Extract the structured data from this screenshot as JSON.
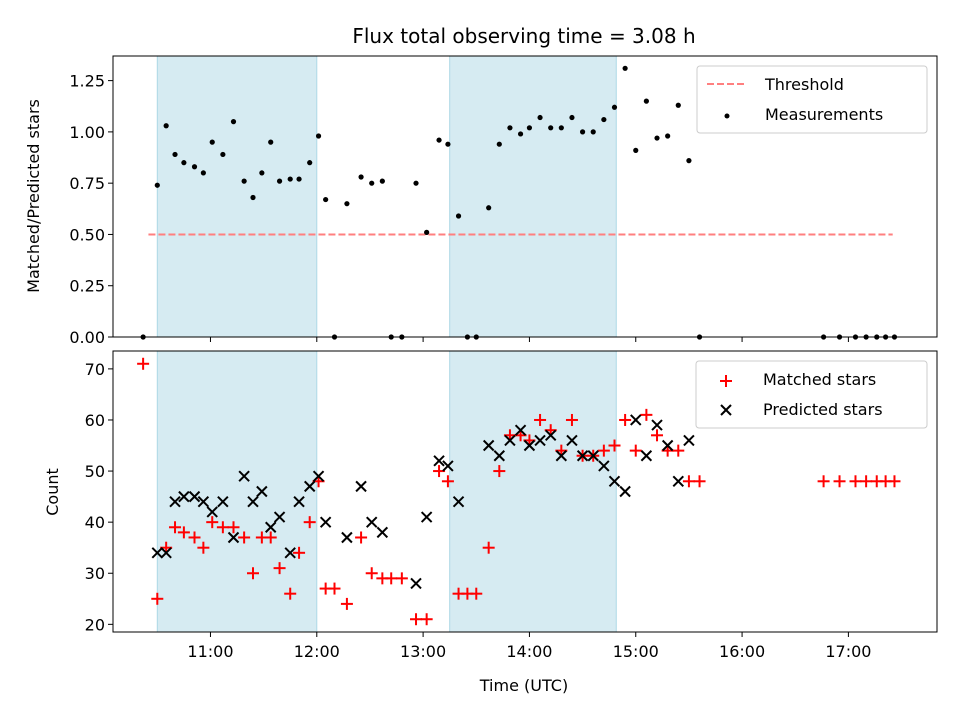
{
  "chart_data": [
    {
      "type": "scatter",
      "title": "Flux total observing time = 3.08 h",
      "xlabel": "",
      "ylabel": "Matched/Predicted stars",
      "xlim": [
        "10:05",
        "17:50"
      ],
      "ylim": [
        0,
        1.37
      ],
      "yticks": [
        0.0,
        0.25,
        0.5,
        0.75,
        1.0,
        1.25
      ],
      "ytick_labels": [
        "0.00",
        "0.25",
        "0.50",
        "0.75",
        "1.00",
        "1.25"
      ],
      "shaded_intervals": [
        [
          "10:30",
          "12:00"
        ],
        [
          "13:15",
          "14:49"
        ]
      ],
      "threshold": {
        "name": "Threshold",
        "y": 0.5,
        "x_range": [
          "10:25",
          "17:25"
        ],
        "color": "#ff7f7f"
      },
      "series": [
        {
          "name": "Measurements",
          "marker": "dot",
          "color": "#000000",
          "points": [
            [
              "10:22",
              0.0
            ],
            [
              "10:30",
              0.74
            ],
            [
              "10:35",
              1.03
            ],
            [
              "10:40",
              0.89
            ],
            [
              "10:45",
              0.85
            ],
            [
              "10:51",
              0.83
            ],
            [
              "10:56",
              0.8
            ],
            [
              "11:01",
              0.95
            ],
            [
              "11:07",
              0.89
            ],
            [
              "11:13",
              1.05
            ],
            [
              "11:19",
              0.76
            ],
            [
              "11:24",
              0.68
            ],
            [
              "11:29",
              0.8
            ],
            [
              "11:34",
              0.95
            ],
            [
              "11:39",
              0.76
            ],
            [
              "11:45",
              0.77
            ],
            [
              "11:50",
              0.77
            ],
            [
              "11:56",
              0.85
            ],
            [
              "12:01",
              0.98
            ],
            [
              "12:05",
              0.67
            ],
            [
              "12:10",
              0.0
            ],
            [
              "12:17",
              0.65
            ],
            [
              "12:25",
              0.78
            ],
            [
              "12:31",
              0.75
            ],
            [
              "12:37",
              0.76
            ],
            [
              "12:42",
              0.0
            ],
            [
              "12:48",
              0.0
            ],
            [
              "12:56",
              0.75
            ],
            [
              "13:02",
              0.51
            ],
            [
              "13:09",
              0.96
            ],
            [
              "13:14",
              0.94
            ],
            [
              "13:20",
              0.59
            ],
            [
              "13:25",
              0.0
            ],
            [
              "13:30",
              0.0
            ],
            [
              "13:37",
              0.63
            ],
            [
              "13:43",
              0.94
            ],
            [
              "13:49",
              1.02
            ],
            [
              "13:55",
              0.99
            ],
            [
              "14:00",
              1.02
            ],
            [
              "14:06",
              1.07
            ],
            [
              "14:12",
              1.02
            ],
            [
              "14:18",
              1.02
            ],
            [
              "14:24",
              1.07
            ],
            [
              "14:30",
              1.0
            ],
            [
              "14:36",
              1.0
            ],
            [
              "14:42",
              1.06
            ],
            [
              "14:48",
              1.12
            ],
            [
              "14:54",
              1.31
            ],
            [
              "15:00",
              0.91
            ],
            [
              "15:06",
              1.15
            ],
            [
              "15:12",
              0.97
            ],
            [
              "15:18",
              0.98
            ],
            [
              "15:24",
              1.13
            ],
            [
              "15:30",
              0.86
            ],
            [
              "15:36",
              0.0
            ],
            [
              "16:46",
              0.0
            ],
            [
              "16:55",
              0.0
            ],
            [
              "17:04",
              0.0
            ],
            [
              "17:10",
              0.0
            ],
            [
              "17:16",
              0.0
            ],
            [
              "17:21",
              0.0
            ],
            [
              "17:26",
              0.0
            ]
          ]
        }
      ]
    },
    {
      "type": "scatter",
      "title": "",
      "xlabel": "Time (UTC)",
      "ylabel": "Count",
      "xlim": [
        "10:05",
        "17:50"
      ],
      "ylim": [
        18.5,
        73.5
      ],
      "yticks": [
        20,
        30,
        40,
        50,
        60,
        70
      ],
      "ytick_labels": [
        "20",
        "30",
        "40",
        "50",
        "60",
        "70"
      ],
      "xticks": [
        "11:00",
        "12:00",
        "13:00",
        "14:00",
        "15:00",
        "16:00",
        "17:00"
      ],
      "xtick_labels": [
        "11:00",
        "12:00",
        "13:00",
        "14:00",
        "15:00",
        "16:00",
        "17:00"
      ],
      "shaded_intervals": [
        [
          "10:30",
          "12:00"
        ],
        [
          "13:15",
          "14:49"
        ]
      ],
      "series": [
        {
          "name": "Matched stars",
          "marker": "plus",
          "color": "#ff0000",
          "points": [
            [
              "10:22",
              71
            ],
            [
              "10:30",
              25
            ],
            [
              "10:35",
              35
            ],
            [
              "10:40",
              39
            ],
            [
              "10:45",
              38
            ],
            [
              "10:51",
              37
            ],
            [
              "10:56",
              35
            ],
            [
              "11:01",
              40
            ],
            [
              "11:07",
              39
            ],
            [
              "11:13",
              39
            ],
            [
              "11:19",
              37
            ],
            [
              "11:24",
              30
            ],
            [
              "11:29",
              37
            ],
            [
              "11:34",
              37
            ],
            [
              "11:39",
              31
            ],
            [
              "11:45",
              26
            ],
            [
              "11:50",
              34
            ],
            [
              "11:56",
              40
            ],
            [
              "12:01",
              48
            ],
            [
              "12:05",
              27
            ],
            [
              "12:10",
              27
            ],
            [
              "12:17",
              24
            ],
            [
              "12:25",
              37
            ],
            [
              "12:31",
              30
            ],
            [
              "12:37",
              29
            ],
            [
              "12:42",
              29
            ],
            [
              "12:48",
              29
            ],
            [
              "12:56",
              21
            ],
            [
              "13:02",
              21
            ],
            [
              "13:09",
              50
            ],
            [
              "13:14",
              48
            ],
            [
              "13:20",
              26
            ],
            [
              "13:25",
              26
            ],
            [
              "13:30",
              26
            ],
            [
              "13:37",
              35
            ],
            [
              "13:43",
              50
            ],
            [
              "13:49",
              57
            ],
            [
              "13:55",
              57
            ],
            [
              "14:00",
              56
            ],
            [
              "14:06",
              60
            ],
            [
              "14:12",
              58
            ],
            [
              "14:18",
              54
            ],
            [
              "14:24",
              60
            ],
            [
              "14:30",
              53
            ],
            [
              "14:36",
              53
            ],
            [
              "14:42",
              54
            ],
            [
              "14:48",
              55
            ],
            [
              "14:54",
              60
            ],
            [
              "15:00",
              54
            ],
            [
              "15:06",
              61
            ],
            [
              "15:12",
              57
            ],
            [
              "15:18",
              54
            ],
            [
              "15:24",
              54
            ],
            [
              "15:30",
              48
            ],
            [
              "15:36",
              48
            ],
            [
              "16:46",
              48
            ],
            [
              "16:55",
              48
            ],
            [
              "17:04",
              48
            ],
            [
              "17:10",
              48
            ],
            [
              "17:16",
              48
            ],
            [
              "17:21",
              48
            ],
            [
              "17:26",
              48
            ]
          ]
        },
        {
          "name": "Predicted stars",
          "marker": "x",
          "color": "#000000",
          "points": [
            [
              "10:30",
              34
            ],
            [
              "10:35",
              34
            ],
            [
              "10:40",
              44
            ],
            [
              "10:45",
              45
            ],
            [
              "10:51",
              45
            ],
            [
              "10:56",
              44
            ],
            [
              "11:01",
              42
            ],
            [
              "11:07",
              44
            ],
            [
              "11:13",
              37
            ],
            [
              "11:19",
              49
            ],
            [
              "11:24",
              44
            ],
            [
              "11:29",
              46
            ],
            [
              "11:34",
              39
            ],
            [
              "11:39",
              41
            ],
            [
              "11:45",
              34
            ],
            [
              "11:50",
              44
            ],
            [
              "11:56",
              47
            ],
            [
              "12:01",
              49
            ],
            [
              "12:05",
              40
            ],
            [
              "12:17",
              37
            ],
            [
              "12:25",
              47
            ],
            [
              "12:31",
              40
            ],
            [
              "12:37",
              38
            ],
            [
              "12:56",
              28
            ],
            [
              "13:02",
              41
            ],
            [
              "13:09",
              52
            ],
            [
              "13:14",
              51
            ],
            [
              "13:20",
              44
            ],
            [
              "13:37",
              55
            ],
            [
              "13:43",
              53
            ],
            [
              "13:49",
              56
            ],
            [
              "13:55",
              58
            ],
            [
              "14:00",
              55
            ],
            [
              "14:06",
              56
            ],
            [
              "14:12",
              57
            ],
            [
              "14:18",
              53
            ],
            [
              "14:24",
              56
            ],
            [
              "14:30",
              53
            ],
            [
              "14:36",
              53
            ],
            [
              "14:42",
              51
            ],
            [
              "14:48",
              48
            ],
            [
              "14:54",
              46
            ],
            [
              "15:00",
              60
            ],
            [
              "15:06",
              53
            ],
            [
              "15:12",
              59
            ],
            [
              "15:18",
              55
            ],
            [
              "15:24",
              48
            ],
            [
              "15:30",
              56
            ]
          ]
        }
      ]
    }
  ],
  "legend_top": {
    "position": "upper right",
    "entries": [
      "Threshold",
      "Measurements"
    ]
  },
  "legend_bottom": {
    "position": "upper right",
    "entries": [
      "Matched stars",
      "Predicted stars"
    ]
  },
  "colors": {
    "shade": "#add8e6",
    "threshold": "#ff7f7f",
    "matched": "#ff0000",
    "predicted": "#000000",
    "measurements": "#000000"
  }
}
